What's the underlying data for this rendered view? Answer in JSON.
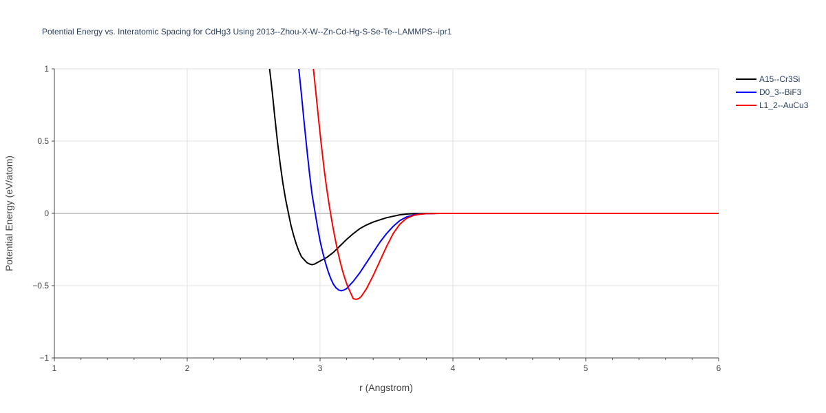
{
  "chart_data": {
    "type": "line",
    "title": "Potential Energy vs. Interatomic Spacing for CdHg3 Using 2013--Zhou-X-W--Zn-Cd-Hg-S-Se-Te--LAMMPS--ipr1",
    "xlabel": "r (Angstrom)",
    "ylabel": "Potential Energy (eV/atom)",
    "xlim": [
      1,
      6
    ],
    "ylim": [
      -1,
      1
    ],
    "xticks": [
      1,
      2,
      3,
      4,
      5,
      6
    ],
    "xtick_labels": [
      "1",
      "2",
      "3",
      "4",
      "5",
      "6"
    ],
    "yticks": [
      -1,
      -0.5,
      0,
      0.5,
      1
    ],
    "ytick_labels": [
      "−1",
      "−0.5",
      "0",
      "0.5",
      "1"
    ],
    "grid": true,
    "legend_position": "top-right",
    "series": [
      {
        "name": "A15--Cr3Si",
        "color": "#000000",
        "x": [
          2.62,
          2.64,
          2.66,
          2.68,
          2.7,
          2.72,
          2.74,
          2.76,
          2.78,
          2.8,
          2.82,
          2.84,
          2.86,
          2.88,
          2.9,
          2.92,
          2.94,
          2.96,
          2.98,
          3.0,
          3.05,
          3.1,
          3.15,
          3.2,
          3.25,
          3.3,
          3.35,
          3.4,
          3.45,
          3.5,
          3.55,
          3.6,
          3.65,
          3.7,
          3.75,
          3.8,
          3.85,
          3.9,
          4.0,
          4.5,
          5.0,
          5.5,
          6.0
        ],
        "y": [
          1.0,
          0.84,
          0.66,
          0.49,
          0.34,
          0.21,
          0.1,
          0.01,
          -0.08,
          -0.15,
          -0.21,
          -0.26,
          -0.3,
          -0.32,
          -0.34,
          -0.35,
          -0.355,
          -0.35,
          -0.34,
          -0.33,
          -0.305,
          -0.27,
          -0.225,
          -0.18,
          -0.14,
          -0.105,
          -0.08,
          -0.06,
          -0.045,
          -0.03,
          -0.02,
          -0.01,
          -0.005,
          -0.002,
          -0.001,
          0.0,
          0.0,
          0.0,
          0.0,
          0.0,
          0.0,
          0.0,
          0.0
        ]
      },
      {
        "name": "D0_3--BiF3",
        "color": "#0000ff",
        "x": [
          2.84,
          2.86,
          2.88,
          2.9,
          2.92,
          2.94,
          2.96,
          2.98,
          3.0,
          3.02,
          3.04,
          3.06,
          3.08,
          3.1,
          3.12,
          3.14,
          3.16,
          3.18,
          3.2,
          3.25,
          3.3,
          3.35,
          3.4,
          3.45,
          3.5,
          3.55,
          3.6,
          3.65,
          3.7,
          3.75,
          3.8,
          3.85,
          3.9,
          4.0,
          4.5,
          5.0,
          5.5,
          6.0
        ],
        "y": [
          1.0,
          0.82,
          0.63,
          0.45,
          0.28,
          0.13,
          0.02,
          -0.09,
          -0.19,
          -0.27,
          -0.34,
          -0.4,
          -0.45,
          -0.49,
          -0.515,
          -0.53,
          -0.535,
          -0.53,
          -0.52,
          -0.47,
          -0.41,
          -0.34,
          -0.27,
          -0.2,
          -0.14,
          -0.09,
          -0.05,
          -0.025,
          -0.012,
          -0.005,
          -0.002,
          -0.001,
          0.0,
          0.0,
          0.0,
          0.0,
          0.0,
          0.0
        ]
      },
      {
        "name": "L1_2--AuCu3",
        "color": "#ff0000",
        "x": [
          2.95,
          2.97,
          2.99,
          3.01,
          3.03,
          3.05,
          3.07,
          3.09,
          3.11,
          3.13,
          3.15,
          3.17,
          3.19,
          3.21,
          3.23,
          3.25,
          3.27,
          3.29,
          3.31,
          3.35,
          3.4,
          3.45,
          3.5,
          3.55,
          3.6,
          3.65,
          3.7,
          3.75,
          3.8,
          3.85,
          3.9,
          4.0,
          4.5,
          5.0,
          5.5,
          6.0
        ],
        "y": [
          1.0,
          0.82,
          0.64,
          0.47,
          0.31,
          0.17,
          0.05,
          -0.06,
          -0.16,
          -0.25,
          -0.33,
          -0.4,
          -0.46,
          -0.51,
          -0.55,
          -0.59,
          -0.595,
          -0.59,
          -0.575,
          -0.52,
          -0.43,
          -0.33,
          -0.23,
          -0.14,
          -0.075,
          -0.035,
          -0.015,
          -0.006,
          -0.002,
          -0.001,
          0.0,
          0.0,
          0.0,
          0.0,
          0.0,
          0.0
        ]
      }
    ]
  }
}
